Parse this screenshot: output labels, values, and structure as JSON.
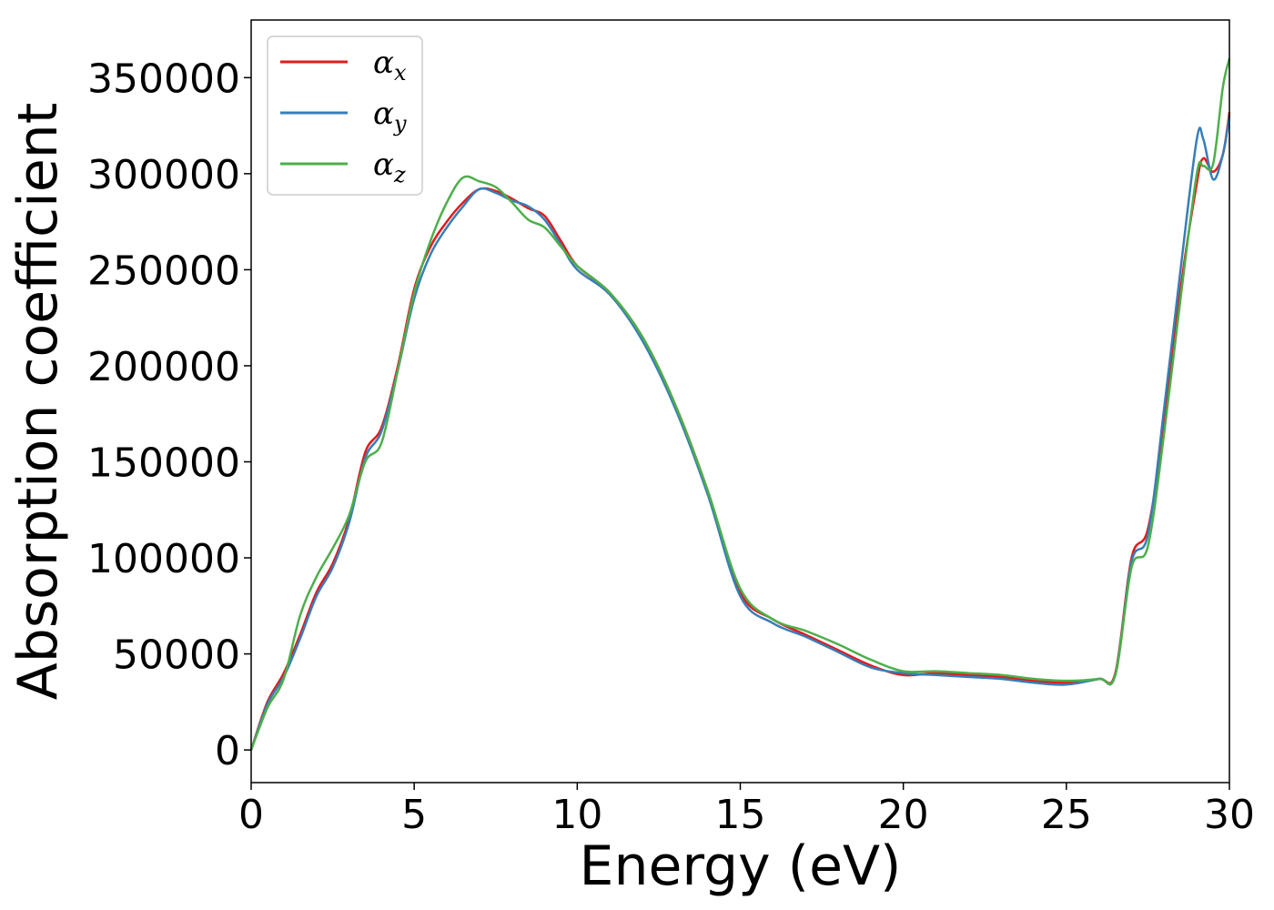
{
  "chart_data": {
    "type": "line",
    "xlabel": "Energy (eV)",
    "ylabel": "Absorption coefficient",
    "xlim": [
      0,
      30
    ],
    "ylim": [
      -17000,
      380000
    ],
    "xticks": [
      0,
      5,
      10,
      15,
      20,
      25,
      30
    ],
    "xtick_labels": [
      "0",
      "5",
      "10",
      "15",
      "20",
      "25",
      "30"
    ],
    "yticks": [
      0,
      50000,
      100000,
      150000,
      200000,
      250000,
      300000,
      350000
    ],
    "ytick_labels": [
      "0",
      "50000",
      "100000",
      "150000",
      "200000",
      "250000",
      "300000",
      "350000"
    ],
    "grid": false,
    "legend_position": "top-left",
    "series": [
      {
        "name": "α",
        "subscript": "x",
        "color": "#e41a1c",
        "points": [
          [
            0,
            0
          ],
          [
            0.5,
            25000
          ],
          [
            1,
            40000
          ],
          [
            1.5,
            60000
          ],
          [
            2,
            82000
          ],
          [
            2.5,
            97000
          ],
          [
            3,
            120000
          ],
          [
            3.5,
            155000
          ],
          [
            4,
            168000
          ],
          [
            4.5,
            200000
          ],
          [
            5,
            240000
          ],
          [
            5.5,
            262000
          ],
          [
            6,
            275000
          ],
          [
            6.5,
            285000
          ],
          [
            7,
            292000
          ],
          [
            7.5,
            291000
          ],
          [
            8,
            287000
          ],
          [
            8.5,
            282000
          ],
          [
            9,
            278000
          ],
          [
            9.5,
            265000
          ],
          [
            10,
            252000
          ],
          [
            11,
            238000
          ],
          [
            12,
            215000
          ],
          [
            13,
            180000
          ],
          [
            14,
            135000
          ],
          [
            15,
            82000
          ],
          [
            16,
            68000
          ],
          [
            17,
            60000
          ],
          [
            18,
            52000
          ],
          [
            19,
            44000
          ],
          [
            20,
            39000
          ],
          [
            21,
            40000
          ],
          [
            22,
            39000
          ],
          [
            23,
            38000
          ],
          [
            24,
            36000
          ],
          [
            25,
            35000
          ],
          [
            26,
            37000
          ],
          [
            26.5,
            40000
          ],
          [
            27,
            100000
          ],
          [
            27.5,
            115000
          ],
          [
            28,
            170000
          ],
          [
            28.5,
            240000
          ],
          [
            29,
            295000
          ],
          [
            29.2,
            308000
          ],
          [
            29.5,
            301000
          ],
          [
            29.8,
            310000
          ],
          [
            30,
            332000
          ]
        ]
      },
      {
        "name": "α",
        "subscript": "y",
        "color": "#377eb8",
        "points": [
          [
            0,
            0
          ],
          [
            0.5,
            24000
          ],
          [
            1,
            38000
          ],
          [
            1.5,
            58000
          ],
          [
            2,
            80000
          ],
          [
            2.5,
            95000
          ],
          [
            3,
            118000
          ],
          [
            3.5,
            152000
          ],
          [
            4,
            166000
          ],
          [
            4.5,
            198000
          ],
          [
            5,
            235000
          ],
          [
            5.5,
            258000
          ],
          [
            6,
            272000
          ],
          [
            6.5,
            283000
          ],
          [
            7,
            292000
          ],
          [
            7.5,
            290000
          ],
          [
            8,
            286000
          ],
          [
            8.5,
            283000
          ],
          [
            9,
            276000
          ],
          [
            9.5,
            263000
          ],
          [
            10,
            250000
          ],
          [
            11,
            237000
          ],
          [
            12,
            213000
          ],
          [
            13,
            178000
          ],
          [
            14,
            133000
          ],
          [
            15,
            80000
          ],
          [
            16,
            66000
          ],
          [
            17,
            59000
          ],
          [
            18,
            51000
          ],
          [
            19,
            43000
          ],
          [
            20,
            40000
          ],
          [
            21,
            39000
          ],
          [
            22,
            38000
          ],
          [
            23,
            37000
          ],
          [
            24,
            35000
          ],
          [
            25,
            34000
          ],
          [
            26,
            37000
          ],
          [
            26.5,
            39000
          ],
          [
            27,
            98000
          ],
          [
            27.5,
            112000
          ],
          [
            28,
            178000
          ],
          [
            28.5,
            250000
          ],
          [
            29,
            318000
          ],
          [
            29.2,
            318000
          ],
          [
            29.5,
            297000
          ],
          [
            29.8,
            310000
          ],
          [
            30,
            330000
          ]
        ]
      },
      {
        "name": "α",
        "subscript": "z",
        "color": "#4daf4a",
        "points": [
          [
            0,
            0
          ],
          [
            0.5,
            22000
          ],
          [
            1,
            37000
          ],
          [
            1.5,
            70000
          ],
          [
            2,
            90000
          ],
          [
            2.5,
            105000
          ],
          [
            3,
            122000
          ],
          [
            3.5,
            150000
          ],
          [
            4,
            160000
          ],
          [
            4.5,
            198000
          ],
          [
            5,
            238000
          ],
          [
            5.5,
            265000
          ],
          [
            6,
            285000
          ],
          [
            6.5,
            298000
          ],
          [
            7,
            296000
          ],
          [
            7.5,
            293000
          ],
          [
            8,
            285000
          ],
          [
            8.5,
            276000
          ],
          [
            9,
            272000
          ],
          [
            9.5,
            262000
          ],
          [
            10,
            252000
          ],
          [
            11,
            238000
          ],
          [
            12,
            215000
          ],
          [
            13,
            180000
          ],
          [
            14,
            135000
          ],
          [
            15,
            84000
          ],
          [
            16,
            68000
          ],
          [
            17,
            62000
          ],
          [
            18,
            55000
          ],
          [
            19,
            47000
          ],
          [
            20,
            41000
          ],
          [
            21,
            41000
          ],
          [
            22,
            40000
          ],
          [
            23,
            39000
          ],
          [
            24,
            37000
          ],
          [
            25,
            36000
          ],
          [
            26,
            37000
          ],
          [
            26.5,
            39000
          ],
          [
            27,
            95000
          ],
          [
            27.5,
            106000
          ],
          [
            28,
            165000
          ],
          [
            28.5,
            235000
          ],
          [
            29,
            300000
          ],
          [
            29.2,
            304000
          ],
          [
            29.5,
            305000
          ],
          [
            29.8,
            345000
          ],
          [
            30,
            360000
          ]
        ]
      }
    ]
  }
}
